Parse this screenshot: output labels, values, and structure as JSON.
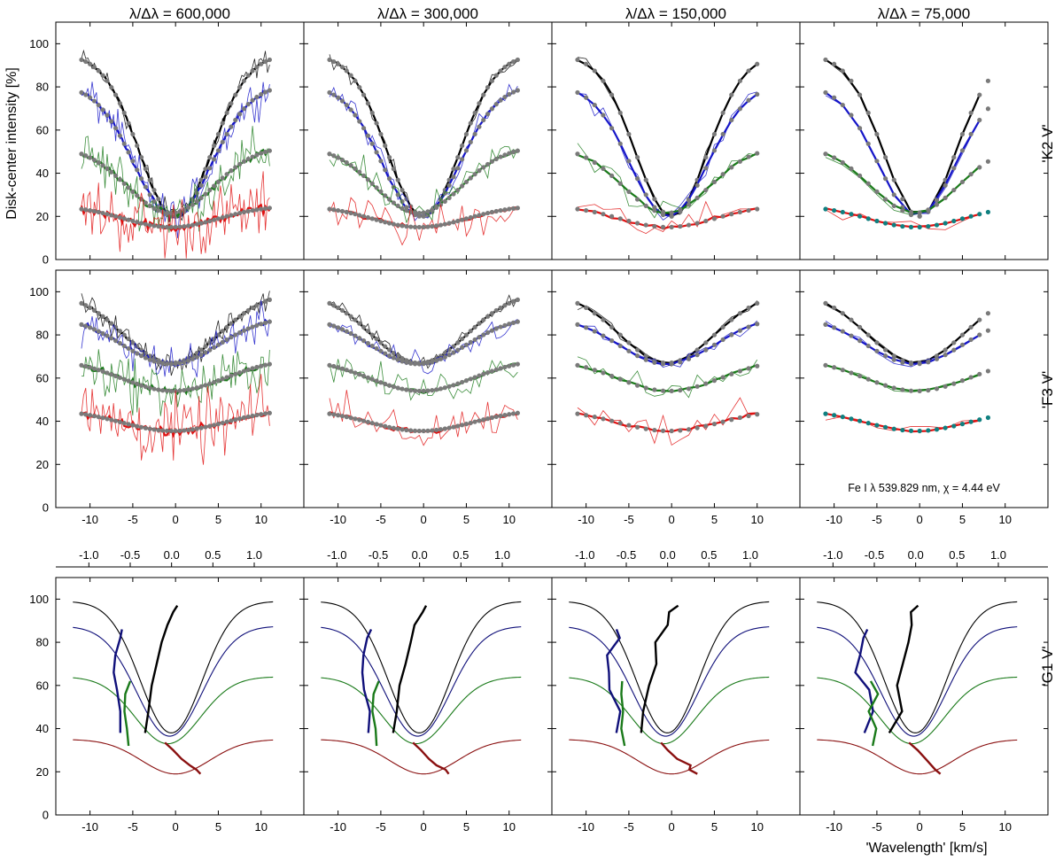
{
  "chart_data": {
    "type": "line",
    "column_titles": [
      "λ/Δλ = 600,000",
      "λ/Δλ = 300,000",
      "λ/Δλ = 150,000",
      "λ/Δλ = 75,000"
    ],
    "row_labels": [
      "'K2 V'",
      "'F3 V'",
      "'G1 V'"
    ],
    "ylabel": "Disk-center intensity [%]",
    "xlabel": "'Wavelength' [km/s]",
    "annotation": "Fe I  λ 539.829 nm, χ = 4.44 eV",
    "xlim": [
      -14,
      15
    ],
    "ylim": [
      0,
      110
    ],
    "x_ticks": [
      -10,
      -5,
      0,
      5,
      10
    ],
    "x_tick_labels": [
      "-10",
      "-5",
      "0",
      "5",
      "10"
    ],
    "y_ticks": [
      0,
      20,
      40,
      60,
      80,
      100
    ],
    "y_tick_labels": [
      "0",
      "20",
      "40",
      "60",
      "80",
      "100"
    ],
    "bisector_axis": {
      "xlim": [
        -1.4,
        1.6
      ],
      "ticks": [
        -1.0,
        -0.5,
        0.0,
        0.5,
        1.0
      ],
      "tick_labels": [
        "-1.0",
        "-0.5",
        "0.0",
        "0.5",
        "1.0"
      ]
    },
    "colors": {
      "black": "#000000",
      "blue": "#1515c8",
      "green": "#1a7a1a",
      "red": "#e01010",
      "darkblue": "#10107a",
      "darkred": "#8a1010",
      "gray": "#7a7a7a",
      "teal": "#108080"
    },
    "sampling_steps": [
      0.25,
      0.5,
      1.0,
      2.0
    ],
    "noise_amplitudes": [
      11,
      7,
      5,
      2
    ],
    "k2v_profiles": [
      {
        "color": "black",
        "continuum": 95,
        "depth": 75,
        "center": 0.0,
        "width": 4.2
      },
      {
        "color": "blue",
        "continuum": 81,
        "depth": 61,
        "center": -0.3,
        "width": 4.5
      },
      {
        "color": "green",
        "continuum": 52.5,
        "depth": 31,
        "center": -0.6,
        "width": 5.0
      },
      {
        "color": "red",
        "continuum": 25,
        "depth": 10,
        "center": -0.5,
        "width": 5.5
      }
    ],
    "f3v_profiles": [
      {
        "color": "black",
        "continuum": 100,
        "depth": 33,
        "center": -0.5,
        "width": 5.5
      },
      {
        "color": "blue",
        "continuum": 88.5,
        "depth": 22,
        "center": -0.6,
        "width": 5.5
      },
      {
        "color": "green",
        "continuum": 69,
        "depth": 15,
        "center": -0.3,
        "width": 6.0
      },
      {
        "color": "red",
        "continuum": 45.5,
        "depth": 10,
        "center": -0.3,
        "width": 6.0
      }
    ],
    "g1v_profiles": [
      {
        "color": "black",
        "continuum": 99,
        "depth": 61,
        "center": -0.5,
        "width": 3.6
      },
      {
        "color": "darkblue",
        "continuum": 87.5,
        "depth": 51,
        "center": -0.7,
        "width": 3.8
      },
      {
        "color": "green",
        "continuum": 64,
        "depth": 31,
        "center": -0.9,
        "width": 3.8
      },
      {
        "color": "darkred",
        "continuum": 35,
        "depth": 16,
        "center": 0.0,
        "width": 4.0
      }
    ],
    "g1v_bisectors": [
      {
        "color": "black",
        "points": [
          [
            -0.32,
            38
          ],
          [
            -0.28,
            48
          ],
          [
            -0.24,
            60
          ],
          [
            -0.18,
            70
          ],
          [
            -0.12,
            80
          ],
          [
            -0.05,
            88
          ],
          [
            0.02,
            94
          ],
          [
            0.07,
            97
          ]
        ]
      },
      {
        "color": "darkblue",
        "points": [
          [
            -0.62,
            38
          ],
          [
            -0.62,
            48
          ],
          [
            -0.66,
            58
          ],
          [
            -0.7,
            66
          ],
          [
            -0.68,
            74
          ],
          [
            -0.62,
            82
          ],
          [
            -0.6,
            86
          ]
        ]
      },
      {
        "color": "green",
        "points": [
          [
            -0.52,
            32
          ],
          [
            -0.54,
            40
          ],
          [
            -0.57,
            48
          ],
          [
            -0.56,
            56
          ],
          [
            -0.5,
            62
          ]
        ]
      },
      {
        "color": "darkred",
        "points": [
          [
            -0.08,
            33.5
          ],
          [
            0.02,
            30
          ],
          [
            0.12,
            26
          ],
          [
            0.22,
            23
          ],
          [
            0.3,
            21
          ],
          [
            0.35,
            19
          ]
        ]
      }
    ]
  }
}
